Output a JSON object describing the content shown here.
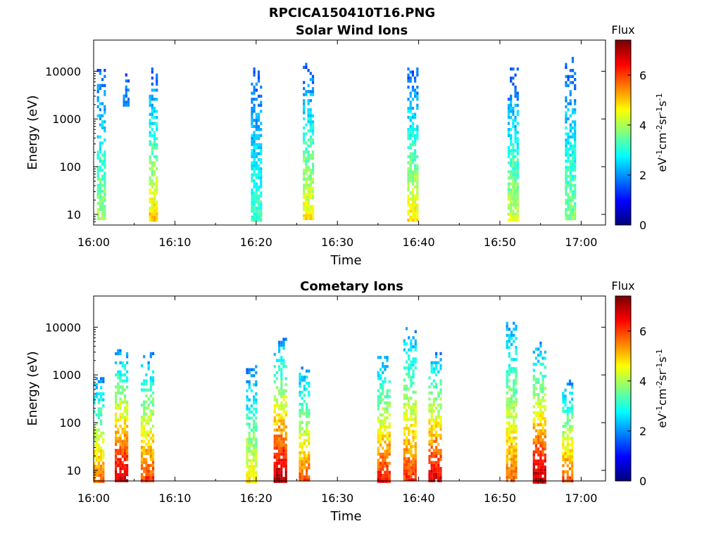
{
  "figure": {
    "title": "RPCICA150410T16.PNG"
  },
  "chart_data": [
    {
      "type": "heatmap",
      "title": "Solar Wind Ions",
      "xlabel": "Time",
      "ylabel": "Energy (eV)",
      "x_ticks": [
        "16:00",
        "16:10",
        "16:20",
        "16:30",
        "16:40",
        "16:50",
        "17:00"
      ],
      "x_range_min": [
        0,
        63
      ],
      "y_scale": "log",
      "y_range_eV": [
        6,
        45000
      ],
      "y_ticks": [
        "10",
        "100",
        "1000",
        "10000"
      ],
      "colorbar": {
        "title": "Flux",
        "label": "eV-1cm-2sr-1s-1",
        "range": [
          0,
          7.4
        ],
        "ticks": [
          "0",
          "2",
          "4",
          "6"
        ],
        "colormap": "jet"
      },
      "bursts": [
        {
          "t_min": 0.9,
          "width_min": 1.0,
          "e_low_eV": 8,
          "e_high_eV": 15000,
          "flux_low_end": 4.0,
          "flux_high_end": 1.5
        },
        {
          "t_min": 3.9,
          "width_min": 0.6,
          "e_low_eV": 2000,
          "e_high_eV": 9000,
          "flux_low_end": 2.0,
          "flux_high_end": 1.5
        },
        {
          "t_min": 7.3,
          "width_min": 1.0,
          "e_low_eV": 8,
          "e_high_eV": 12000,
          "flux_low_end": 5.0,
          "flux_high_end": 1.5
        },
        {
          "t_min": 20.0,
          "width_min": 1.3,
          "e_low_eV": 8,
          "e_high_eV": 12000,
          "flux_low_end": 3.3,
          "flux_high_end": 1.5
        },
        {
          "t_min": 26.4,
          "width_min": 1.3,
          "e_low_eV": 8,
          "e_high_eV": 15000,
          "flux_low_end": 4.8,
          "flux_high_end": 1.5
        },
        {
          "t_min": 39.2,
          "width_min": 1.2,
          "e_low_eV": 8,
          "e_high_eV": 12000,
          "flux_low_end": 4.8,
          "flux_high_end": 1.5
        },
        {
          "t_min": 51.6,
          "width_min": 1.3,
          "e_low_eV": 8,
          "e_high_eV": 12000,
          "flux_low_end": 4.3,
          "flux_high_end": 1.5
        },
        {
          "t_min": 58.6,
          "width_min": 1.2,
          "e_low_eV": 8,
          "e_high_eV": 20000,
          "flux_low_end": 3.8,
          "flux_high_end": 1.5
        }
      ]
    },
    {
      "type": "heatmap",
      "title": "Cometary Ions",
      "xlabel": "Time",
      "ylabel": "Energy (eV)",
      "x_ticks": [
        "16:00",
        "16:10",
        "16:20",
        "16:30",
        "16:40",
        "16:50",
        "17:00"
      ],
      "x_range_min": [
        0,
        63
      ],
      "y_scale": "log",
      "y_range_eV": [
        6,
        45000
      ],
      "y_ticks": [
        "10",
        "100",
        "1000",
        "10000"
      ],
      "colorbar": {
        "title": "Flux",
        "label": "eV-1cm-2sr-1s-1",
        "range": [
          0,
          7.4
        ],
        "ticks": [
          "0",
          "2",
          "4",
          "6"
        ],
        "colormap": "jet"
      },
      "bursts": [
        {
          "t_min": 0.6,
          "width_min": 1.3,
          "e_low_eV": 6,
          "e_high_eV": 900,
          "flux_low_end": 5.8,
          "flux_high_end": 2.0
        },
        {
          "t_min": 3.3,
          "width_min": 1.4,
          "e_low_eV": 6,
          "e_high_eV": 4000,
          "flux_low_end": 7.0,
          "flux_high_end": 2.0
        },
        {
          "t_min": 6.5,
          "width_min": 1.4,
          "e_low_eV": 6,
          "e_high_eV": 3000,
          "flux_low_end": 6.2,
          "flux_high_end": 2.0
        },
        {
          "t_min": 19.4,
          "width_min": 1.3,
          "e_low_eV": 6,
          "e_high_eV": 1600,
          "flux_low_end": 4.8,
          "flux_high_end": 1.8
        },
        {
          "t_min": 22.9,
          "width_min": 1.5,
          "e_low_eV": 6,
          "e_high_eV": 6000,
          "flux_low_end": 7.2,
          "flux_high_end": 2.0
        },
        {
          "t_min": 25.9,
          "width_min": 1.3,
          "e_low_eV": 6,
          "e_high_eV": 1500,
          "flux_low_end": 6.0,
          "flux_high_end": 2.0
        },
        {
          "t_min": 35.6,
          "width_min": 1.4,
          "e_low_eV": 6,
          "e_high_eV": 2500,
          "flux_low_end": 6.5,
          "flux_high_end": 2.0
        },
        {
          "t_min": 38.8,
          "width_min": 1.4,
          "e_low_eV": 6,
          "e_high_eV": 10000,
          "flux_low_end": 6.2,
          "flux_high_end": 2.0
        },
        {
          "t_min": 42.0,
          "width_min": 1.6,
          "e_low_eV": 6,
          "e_high_eV": 3000,
          "flux_low_end": 6.9,
          "flux_high_end": 2.0
        },
        {
          "t_min": 51.4,
          "width_min": 1.3,
          "e_low_eV": 6,
          "e_high_eV": 13000,
          "flux_low_end": 5.8,
          "flux_high_end": 2.0
        },
        {
          "t_min": 54.8,
          "width_min": 1.5,
          "e_low_eV": 6,
          "e_high_eV": 5000,
          "flux_low_end": 7.1,
          "flux_high_end": 2.0
        },
        {
          "t_min": 58.3,
          "width_min": 1.3,
          "e_low_eV": 6,
          "e_high_eV": 800,
          "flux_low_end": 6.0,
          "flux_high_end": 2.0
        }
      ]
    }
  ]
}
